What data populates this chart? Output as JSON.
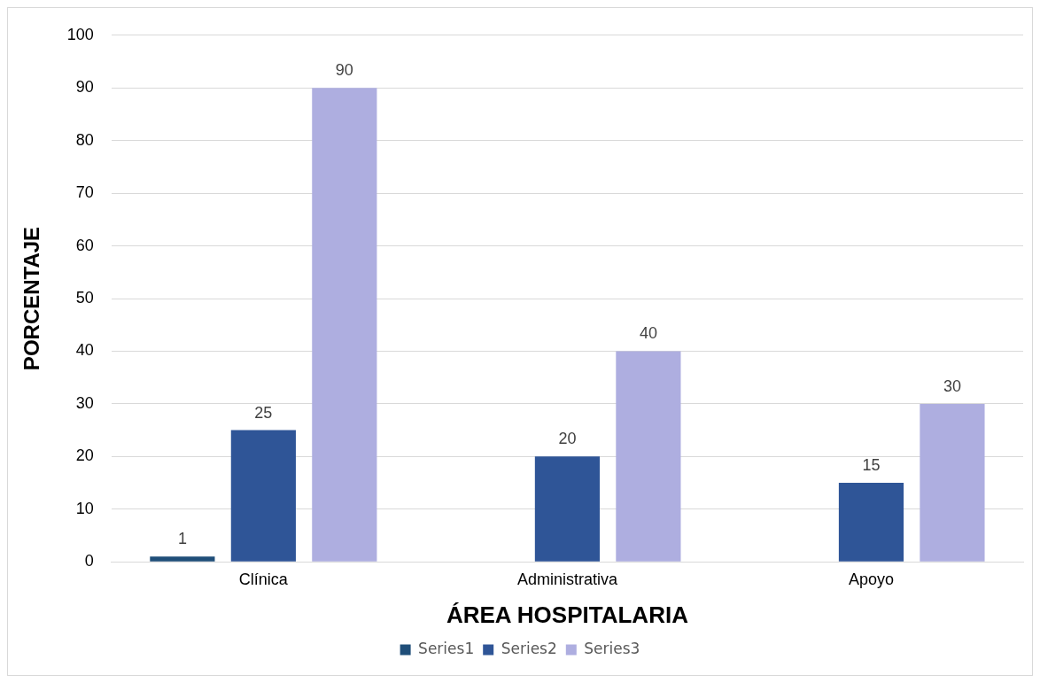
{
  "chart_data": {
    "type": "bar",
    "xlabel": "ÁREA HOSPITALARIA",
    "ylabel": "PORCENTAJE",
    "categories": [
      "Clínica",
      "Administrativa",
      "Apoyo"
    ],
    "series": [
      {
        "name": "Series1",
        "color": "#1f4e79",
        "values": [
          1,
          null,
          null
        ]
      },
      {
        "name": "Series2",
        "color": "#2f5597",
        "values": [
          25,
          20,
          15
        ]
      },
      {
        "name": "Series3",
        "color": "#aeaee0",
        "values": [
          90,
          40,
          30
        ]
      }
    ],
    "ylim": [
      0,
      100
    ],
    "yticks": [
      0,
      10,
      20,
      30,
      40,
      50,
      60,
      70,
      80,
      90,
      100
    ],
    "grid": "y",
    "legend": "bottom",
    "data_labels": true
  }
}
